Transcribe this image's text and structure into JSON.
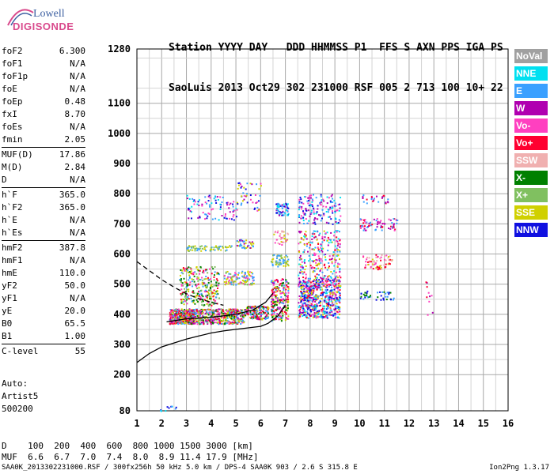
{
  "logo": {
    "line1": "Lowell",
    "line2": "DIGISONDE"
  },
  "header": {
    "line1": "Station YYYY DAY   DDD HHMMSS P1  FFS S AXN PPS IGA PS",
    "line2": "SaoLuis 2013 Oct29 302 231000 RSF 005 2 713 100 10+ 22"
  },
  "params": {
    "group1": [
      {
        "k": "foF2",
        "v": "6.300"
      },
      {
        "k": "foF1",
        "v": "N/A"
      },
      {
        "k": "foF1p",
        "v": "N/A"
      },
      {
        "k": "foE",
        "v": "N/A"
      },
      {
        "k": "foEp",
        "v": "0.48"
      },
      {
        "k": "fxI",
        "v": "8.70"
      },
      {
        "k": "foEs",
        "v": "N/A"
      },
      {
        "k": "fmin",
        "v": "2.05"
      }
    ],
    "group2": [
      {
        "k": "MUF(D)",
        "v": "17.86"
      },
      {
        "k": "M(D)",
        "v": "2.84"
      },
      {
        "k": "D",
        "v": "N/A"
      }
    ],
    "group3": [
      {
        "k": "h`F",
        "v": "365.0"
      },
      {
        "k": "h`F2",
        "v": "365.0"
      },
      {
        "k": "h`E",
        "v": "N/A"
      },
      {
        "k": "h`Es",
        "v": "N/A"
      }
    ],
    "group4": [
      {
        "k": "hmF2",
        "v": "387.8"
      },
      {
        "k": "hmF1",
        "v": "N/A"
      },
      {
        "k": "hmE",
        "v": "110.0"
      },
      {
        "k": "yF2",
        "v": "50.0"
      },
      {
        "k": "yF1",
        "v": "N/A"
      },
      {
        "k": "yE",
        "v": "20.0"
      },
      {
        "k": "B0",
        "v": "65.5"
      },
      {
        "k": "B1",
        "v": "1.00"
      }
    ],
    "group5": [
      {
        "k": "C-level",
        "v": "55"
      }
    ]
  },
  "auto": {
    "l1": "Auto:",
    "l2": "Artist5",
    "l3": "500200"
  },
  "legend": [
    {
      "label": "NoVal",
      "color": "#a0a0a0"
    },
    {
      "label": "NNE",
      "color": "#00e0f0"
    },
    {
      "label": "E",
      "color": "#3aa0ff"
    },
    {
      "label": "W",
      "color": "#b000b0"
    },
    {
      "label": "Vo-",
      "color": "#ff40c0"
    },
    {
      "label": "Vo+",
      "color": "#ff0030"
    },
    {
      "label": "SSW",
      "color": "#f0b0b0"
    },
    {
      "label": "X-",
      "color": "#008000"
    },
    {
      "label": "X+",
      "color": "#80c060"
    },
    {
      "label": "SSE",
      "color": "#d0d000"
    },
    {
      "label": "NNW",
      "color": "#1010e0"
    }
  ],
  "bottom": {
    "d_row": "D    100  200  400  600  800 1000 1500 3000 [km]",
    "muf_row": "MUF  6.6  6.7  7.0  7.4  8.0  8.9 11.4 17.9 [MHz]",
    "file_row": "SAA0K_2013302231000.RSF / 300fx256h 50 kHz 5.0 km / DPS-4 SAA0K 903 / 2.6 S 315.8 E",
    "version": "Ion2Png 1.3.17"
  },
  "chart_data": {
    "type": "scatter",
    "x_ticks": [
      "1",
      "2",
      "3",
      "4",
      "5",
      "6",
      "7",
      "8",
      "9",
      "10",
      "11",
      "12",
      "13",
      "14",
      "15",
      "16"
    ],
    "y_ticks": [
      "80",
      "200",
      "300",
      "400",
      "500",
      "600",
      "700",
      "800",
      "900",
      "1000",
      "1100",
      "1280"
    ],
    "xlim": [
      1,
      16
    ],
    "ylim": [
      80,
      1280
    ],
    "grid": true,
    "clusters": [
      {
        "x": [
          2.3,
          3.3
        ],
        "y": [
          370,
          420
        ],
        "n": 420,
        "colors": [
          "#ff0030",
          "#ff40c0",
          "#ff0030",
          "#b000b0",
          "#3aa0ff",
          "#008000",
          "#80c060",
          "#d0d000"
        ]
      },
      {
        "x": [
          3.3,
          5.3
        ],
        "y": [
          370,
          420
        ],
        "n": 420,
        "colors": [
          "#ff0030",
          "#ff40c0",
          "#b000b0",
          "#d0d000",
          "#80c060",
          "#3aa0ff",
          "#008000"
        ]
      },
      {
        "x": [
          5.3,
          6.3
        ],
        "y": [
          385,
          430
        ],
        "n": 150,
        "colors": [
          "#ff0030",
          "#b000b0",
          "#3aa0ff",
          "#d0d000",
          "#008000"
        ]
      },
      {
        "x": [
          2.7,
          4.3
        ],
        "y": [
          430,
          560
        ],
        "n": 280,
        "colors": [
          "#d0d000",
          "#80c060",
          "#ff40c0",
          "#ff0030",
          "#3aa0ff",
          "#008000"
        ]
      },
      {
        "x": [
          4.5,
          5.7
        ],
        "y": [
          500,
          545
        ],
        "n": 120,
        "colors": [
          "#d0d000",
          "#80c060",
          "#ff40c0",
          "#3aa0ff"
        ]
      },
      {
        "x": [
          3,
          4.8
        ],
        "y": [
          612,
          630
        ],
        "n": 70,
        "colors": [
          "#d0d000",
          "#80c060",
          "#3aa0ff"
        ]
      },
      {
        "x": [
          5,
          5.7
        ],
        "y": [
          620,
          650
        ],
        "n": 40,
        "colors": [
          "#d0d000",
          "#3aa0ff",
          "#b000b0"
        ]
      },
      {
        "x": [
          3,
          5
        ],
        "y": [
          715,
          800
        ],
        "n": 90,
        "colors": [
          "#b000b0",
          "#3aa0ff",
          "#00e0f0",
          "#ff40c0",
          "#1010e0"
        ]
      },
      {
        "x": [
          5,
          6
        ],
        "y": [
          745,
          840
        ],
        "n": 45,
        "colors": [
          "#b000b0",
          "#3aa0ff",
          "#1010e0",
          "#ff40c0",
          "#d0d000"
        ]
      },
      {
        "x": [
          6.4,
          7.1
        ],
        "y": [
          380,
          520
        ],
        "n": 220,
        "colors": [
          "#ff0030",
          "#ff40c0",
          "#b000b0",
          "#3aa0ff",
          "#008000",
          "#d0d000"
        ]
      },
      {
        "x": [
          6.4,
          7.1
        ],
        "y": [
          560,
          600
        ],
        "n": 60,
        "colors": [
          "#d0d000",
          "#80c060",
          "#3aa0ff"
        ]
      },
      {
        "x": [
          6.5,
          7.1
        ],
        "y": [
          630,
          680
        ],
        "n": 35,
        "colors": [
          "#ff40c0",
          "#d0d000",
          "#f0b0b0"
        ]
      },
      {
        "x": [
          6.6,
          7.1
        ],
        "y": [
          730,
          770
        ],
        "n": 60,
        "colors": [
          "#1010e0",
          "#b000b0",
          "#3aa0ff",
          "#00e0f0"
        ]
      },
      {
        "x": [
          7.5,
          9.2
        ],
        "y": [
          390,
          520
        ],
        "n": 600,
        "colors": [
          "#1010e0",
          "#1010e0",
          "#3aa0ff",
          "#00e0f0",
          "#b000b0",
          "#ff40c0",
          "#d0d000",
          "#ff0030"
        ]
      },
      {
        "x": [
          7.5,
          9.2
        ],
        "y": [
          520,
          680
        ],
        "n": 260,
        "colors": [
          "#d0d000",
          "#b000b0",
          "#ff40c0",
          "#3aa0ff",
          "#00e0f0",
          "#ff0030"
        ]
      },
      {
        "x": [
          7.5,
          9.2
        ],
        "y": [
          700,
          800
        ],
        "n": 150,
        "colors": [
          "#00e0f0",
          "#3aa0ff",
          "#b000b0",
          "#1010e0",
          "#ff40c0"
        ]
      },
      {
        "x": [
          10,
          11.4
        ],
        "y": [
          450,
          480
        ],
        "n": 40,
        "colors": [
          "#1010e0",
          "#008000",
          "#3aa0ff"
        ]
      },
      {
        "x": [
          10.1,
          11.3
        ],
        "y": [
          550,
          600
        ],
        "n": 70,
        "colors": [
          "#ff40c0",
          "#d0d000",
          "#f0b0b0",
          "#ff0030"
        ]
      },
      {
        "x": [
          10,
          11.5
        ],
        "y": [
          680,
          720
        ],
        "n": 70,
        "colors": [
          "#ff0030",
          "#b000b0",
          "#ff40c0",
          "#3aa0ff"
        ]
      },
      {
        "x": [
          10,
          11.2
        ],
        "y": [
          770,
          800
        ],
        "n": 25,
        "colors": [
          "#b000b0",
          "#ff0030",
          "#3aa0ff"
        ]
      },
      {
        "x": [
          12.6,
          13
        ],
        "y": [
          400,
          530
        ],
        "n": 10,
        "colors": [
          "#ff0030",
          "#3aa0ff",
          "#ff40c0",
          "#b000b0"
        ]
      },
      {
        "x": [
          1.8,
          2.6
        ],
        "y": [
          80,
          100
        ],
        "n": 12,
        "colors": [
          "#3aa0ff",
          "#1010e0",
          "#00e0f0"
        ]
      }
    ],
    "profile_solid": [
      [
        1,
        240
      ],
      [
        1.5,
        270
      ],
      [
        2,
        292
      ],
      [
        2.5,
        305
      ],
      [
        3,
        318
      ],
      [
        3.5,
        328
      ],
      [
        4,
        338
      ],
      [
        4.5,
        345
      ],
      [
        5,
        350
      ],
      [
        5.5,
        355
      ],
      [
        6,
        360
      ],
      [
        6.3,
        370
      ],
      [
        6.7,
        395
      ],
      [
        7,
        430
      ]
    ],
    "profile_trace": [
      [
        2.2,
        375
      ],
      [
        3,
        385
      ],
      [
        4,
        390
      ],
      [
        5,
        400
      ],
      [
        5.7,
        415
      ],
      [
        6.2,
        440
      ],
      [
        6.5,
        470
      ]
    ],
    "profile_dashed": [
      [
        1,
        575
      ],
      [
        1.5,
        545
      ],
      [
        2,
        515
      ],
      [
        2.5,
        490
      ],
      [
        3,
        468
      ],
      [
        3.5,
        452
      ],
      [
        4,
        440
      ],
      [
        4.5,
        430
      ]
    ]
  }
}
